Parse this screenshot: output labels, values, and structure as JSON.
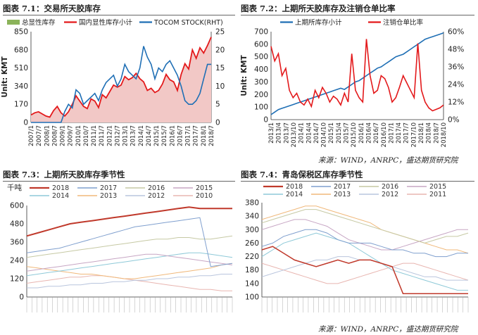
{
  "sources": [
    "来源：WIND，ANRPC，盛达期货研究院",
    "来源：WIND，ANRPC，盛达期货研究院"
  ],
  "chart_data": [
    {
      "id": "p1",
      "type": "line",
      "figure_label": "图表 7.1：",
      "title": "交易所天胶库存",
      "ylabel": "Unit: KMT",
      "ylim": [
        0,
        850
      ],
      "yticks": [
        0,
        170,
        340,
        510,
        680,
        850
      ],
      "y2lim": [
        0,
        25
      ],
      "y2ticks": [
        0,
        5,
        10,
        15,
        20,
        25
      ],
      "x_ticks": [
        "2007/1",
        "2007/7",
        "2008/1",
        "2008/7",
        "2009/1",
        "2009/7",
        "2010/1",
        "2010/7",
        "2011/1",
        "2011/7",
        "2012/1",
        "2012/7",
        "2013/1",
        "2013/7",
        "2014/1",
        "2014/7",
        "2015/1",
        "2015/7",
        "2016/1",
        "2016/7",
        "2017/1",
        "2017/7",
        "2018/1",
        "2018/7"
      ],
      "series": [
        {
          "name": "总显性库存",
          "kind": "area",
          "axis": "left",
          "color": "#8bb35a",
          "values": [
            0,
            0,
            0,
            0,
            0,
            0,
            0,
            0,
            0,
            0,
            0,
            0,
            0,
            0,
            0,
            0,
            0,
            0,
            0,
            0,
            0,
            0,
            0,
            0,
            0,
            0,
            0,
            0,
            0,
            0,
            0,
            0,
            0,
            0,
            0,
            0,
            0,
            0,
            0,
            0,
            0,
            0,
            0,
            0,
            0,
            0,
            0,
            0,
            0
          ]
        },
        {
          "name": "国内显性库存小计",
          "kind": "area-line",
          "axis": "left",
          "color": "#e3191b",
          "fill": "#f2c8c6",
          "values": [
            70,
            90,
            100,
            80,
            60,
            50,
            110,
            150,
            90,
            60,
            100,
            170,
            250,
            200,
            150,
            130,
            220,
            200,
            140,
            260,
            230,
            290,
            350,
            330,
            350,
            430,
            400,
            420,
            460,
            410,
            380,
            300,
            320,
            280,
            300,
            360,
            450,
            400,
            380,
            300,
            450,
            550,
            500,
            680,
            600,
            700,
            650,
            720,
            800
          ]
        },
        {
          "name": "TOCOM STOCK(RHT)",
          "kind": "line",
          "axis": "right",
          "color": "#1f6fb5",
          "values": [
            0,
            0,
            0,
            0,
            0,
            0,
            0,
            0,
            0,
            3,
            5,
            4,
            9,
            8,
            5,
            6,
            7,
            8,
            6,
            9,
            11,
            12,
            13,
            10,
            12,
            16,
            14,
            13,
            12,
            15,
            21,
            18,
            16,
            12,
            15,
            14,
            16,
            17,
            15,
            13,
            10,
            6,
            5,
            5,
            6,
            8,
            12,
            16,
            16
          ]
        }
      ]
    },
    {
      "id": "p2",
      "type": "line",
      "figure_label": "图表 7.2：",
      "title": "上期所天胶库存及注销仓单比率",
      "ylabel": "Unit: KMT",
      "ylim": [
        0,
        700
      ],
      "yticks": [
        0,
        100,
        200,
        300,
        400,
        500,
        600,
        700
      ],
      "y2lim": [
        0,
        0.6
      ],
      "y2ticks": [
        0,
        0.12,
        0.24,
        0.36,
        0.48,
        0.6
      ],
      "y2tick_labels": [
        "0%",
        "12%",
        "24%",
        "36%",
        "48%",
        "60%"
      ],
      "x_ticks": [
        "2013/1",
        "2013/4",
        "2013/7",
        "2013/10",
        "2014/1",
        "2014/4",
        "2014/7",
        "2014/10",
        "2015/1",
        "2015/4",
        "2015/7",
        "2015/10",
        "2016/1",
        "2016/4",
        "2016/7",
        "2016/10",
        "2017/1",
        "2017/4",
        "2017/7",
        "2017/10",
        "2018/1",
        "2018/4",
        "2018/7",
        "2018/10"
      ],
      "series": [
        {
          "name": "上期所库存小计",
          "axis": "left",
          "color": "#1f6fb5",
          "values": [
            40,
            60,
            80,
            90,
            100,
            110,
            120,
            130,
            140,
            150,
            160,
            170,
            180,
            190,
            200,
            210,
            220,
            230,
            240,
            250,
            240,
            260,
            280,
            300,
            310,
            330,
            350,
            370,
            390,
            410,
            420,
            440,
            460,
            480,
            500,
            510,
            520,
            540,
            560,
            580,
            600,
            620,
            640,
            650,
            660,
            670,
            680,
            690
          ]
        },
        {
          "name": "注销仓单比率",
          "axis": "right",
          "color": "#e3191b",
          "values": [
            0.5,
            0.4,
            0.45,
            0.3,
            0.35,
            0.2,
            0.15,
            0.18,
            0.12,
            0.1,
            0.14,
            0.09,
            0.2,
            0.15,
            0.22,
            0.18,
            0.12,
            0.16,
            0.14,
            0.1,
            0.18,
            0.12,
            0.45,
            0.2,
            0.15,
            0.12,
            0.55,
            0.3,
            0.18,
            0.2,
            0.3,
            0.28,
            0.22,
            0.12,
            0.15,
            0.22,
            0.3,
            0.25,
            0.2,
            0.15,
            0.52,
            0.2,
            0.12,
            0.08,
            0.06,
            0.07,
            0.08,
            0.1
          ]
        }
      ]
    },
    {
      "id": "p3",
      "type": "line",
      "figure_label": "图表 7.3：",
      "title": "上期所天胶库存季节性",
      "unit_label": "千吨",
      "ylim": [
        0,
        600
      ],
      "yticks": [
        0,
        120,
        240,
        360,
        480,
        600
      ],
      "series": [
        {
          "name": "2018",
          "color": "#c0392b",
          "width": 2,
          "values": [
            400,
            420,
            440,
            460,
            480,
            490,
            500,
            510,
            520,
            530,
            540,
            550,
            560,
            570,
            580,
            590,
            580,
            580,
            580,
            580
          ]
        },
        {
          "name": "2017",
          "color": "#7f9fce",
          "width": 1,
          "values": [
            290,
            300,
            310,
            320,
            340,
            360,
            380,
            400,
            420,
            440,
            460,
            470,
            480,
            490,
            500,
            510,
            520,
            200,
            210,
            220
          ]
        },
        {
          "name": "2016",
          "color": "#c6c9a4",
          "width": 1,
          "values": [
            260,
            270,
            280,
            290,
            300,
            310,
            320,
            330,
            340,
            350,
            360,
            370,
            380,
            380,
            390,
            390,
            380,
            380,
            390,
            400
          ]
        },
        {
          "name": "2015",
          "color": "#c7a6c4",
          "width": 1,
          "values": [
            170,
            180,
            190,
            200,
            210,
            220,
            230,
            240,
            250,
            260,
            270,
            280,
            280,
            270,
            260,
            250,
            240,
            230,
            220,
            210
          ]
        },
        {
          "name": "2014",
          "color": "#8ec9d8",
          "width": 1,
          "values": [
            140,
            150,
            160,
            170,
            180,
            190,
            200,
            210,
            220,
            230,
            240,
            250,
            260,
            270,
            280,
            290,
            290,
            280,
            270,
            260
          ]
        },
        {
          "name": "2013",
          "color": "#f0b87a",
          "width": 1,
          "values": [
            200,
            190,
            180,
            170,
            160,
            150,
            150,
            140,
            130,
            120,
            120,
            130,
            140,
            150,
            160,
            170,
            180,
            190,
            210,
            220
          ]
        },
        {
          "name": "2012",
          "color": "#b9c5dd",
          "width": 1,
          "values": [
            60,
            60,
            70,
            70,
            80,
            80,
            90,
            90,
            100,
            100,
            110,
            110,
            120,
            120,
            130,
            130,
            140,
            140,
            150,
            150
          ]
        },
        {
          "name": "2010",
          "color": "#e8b5b0",
          "width": 1,
          "values": [
            90,
            100,
            110,
            120,
            130,
            130,
            140,
            140,
            130,
            120,
            110,
            100,
            90,
            80,
            70,
            60,
            50,
            50,
            40,
            40
          ]
        }
      ]
    },
    {
      "id": "p4",
      "type": "line",
      "figure_label": "图表 7.4：",
      "title": "青岛保税区库存季节性",
      "ylim": [
        100,
        380
      ],
      "yticks": [
        100,
        140,
        180,
        220,
        260,
        300,
        340,
        380
      ],
      "series": [
        {
          "name": "2018",
          "color": "#c0392b",
          "width": 1.5,
          "values": [
            240,
            250,
            230,
            210,
            200,
            190,
            200,
            210,
            200,
            210,
            210,
            200,
            190,
            110,
            110,
            110,
            110,
            110,
            110,
            110
          ]
        },
        {
          "name": "2017",
          "color": "#7f9fce",
          "width": 1,
          "values": [
            250,
            260,
            280,
            290,
            300,
            300,
            290,
            270,
            260,
            260,
            260,
            250,
            240,
            240,
            230,
            230,
            220,
            220,
            230,
            230
          ]
        },
        {
          "name": "2016",
          "color": "#c6c9a4",
          "width": 1,
          "values": [
            320,
            330,
            340,
            350,
            360,
            360,
            350,
            340,
            330,
            320,
            310,
            300,
            290,
            280,
            270,
            260,
            270,
            280,
            280,
            290
          ]
        },
        {
          "name": "2015",
          "color": "#c7a6c4",
          "width": 1,
          "values": [
            300,
            310,
            320,
            330,
            330,
            320,
            310,
            290,
            270,
            260,
            250,
            240,
            240,
            250,
            260,
            270,
            280,
            290,
            300,
            300
          ]
        },
        {
          "name": "2014",
          "color": "#8ec9d8",
          "width": 1,
          "values": [
            220,
            240,
            260,
            270,
            280,
            290,
            280,
            270,
            260,
            240,
            220,
            200,
            180,
            170,
            160,
            150,
            140,
            130,
            120,
            120
          ]
        },
        {
          "name": "2013",
          "color": "#f0b87a",
          "width": 1,
          "values": [
            330,
            340,
            350,
            360,
            370,
            370,
            360,
            350,
            340,
            330,
            320,
            300,
            290,
            280,
            270,
            260,
            250,
            240,
            240,
            230
          ]
        },
        {
          "name": "2012",
          "color": "#b9c5dd",
          "width": 1,
          "values": [
            160,
            170,
            180,
            190,
            200,
            210,
            210,
            220,
            220,
            210,
            210,
            200,
            190,
            180,
            170,
            160,
            160,
            150,
            150,
            150
          ]
        },
        {
          "name": "2011",
          "color": "#e8b5b0",
          "width": 1,
          "values": [
            200,
            190,
            180,
            170,
            160,
            150,
            140,
            140,
            150,
            160,
            170,
            180,
            190,
            200,
            200,
            190,
            180,
            170,
            160,
            150
          ]
        }
      ]
    }
  ]
}
